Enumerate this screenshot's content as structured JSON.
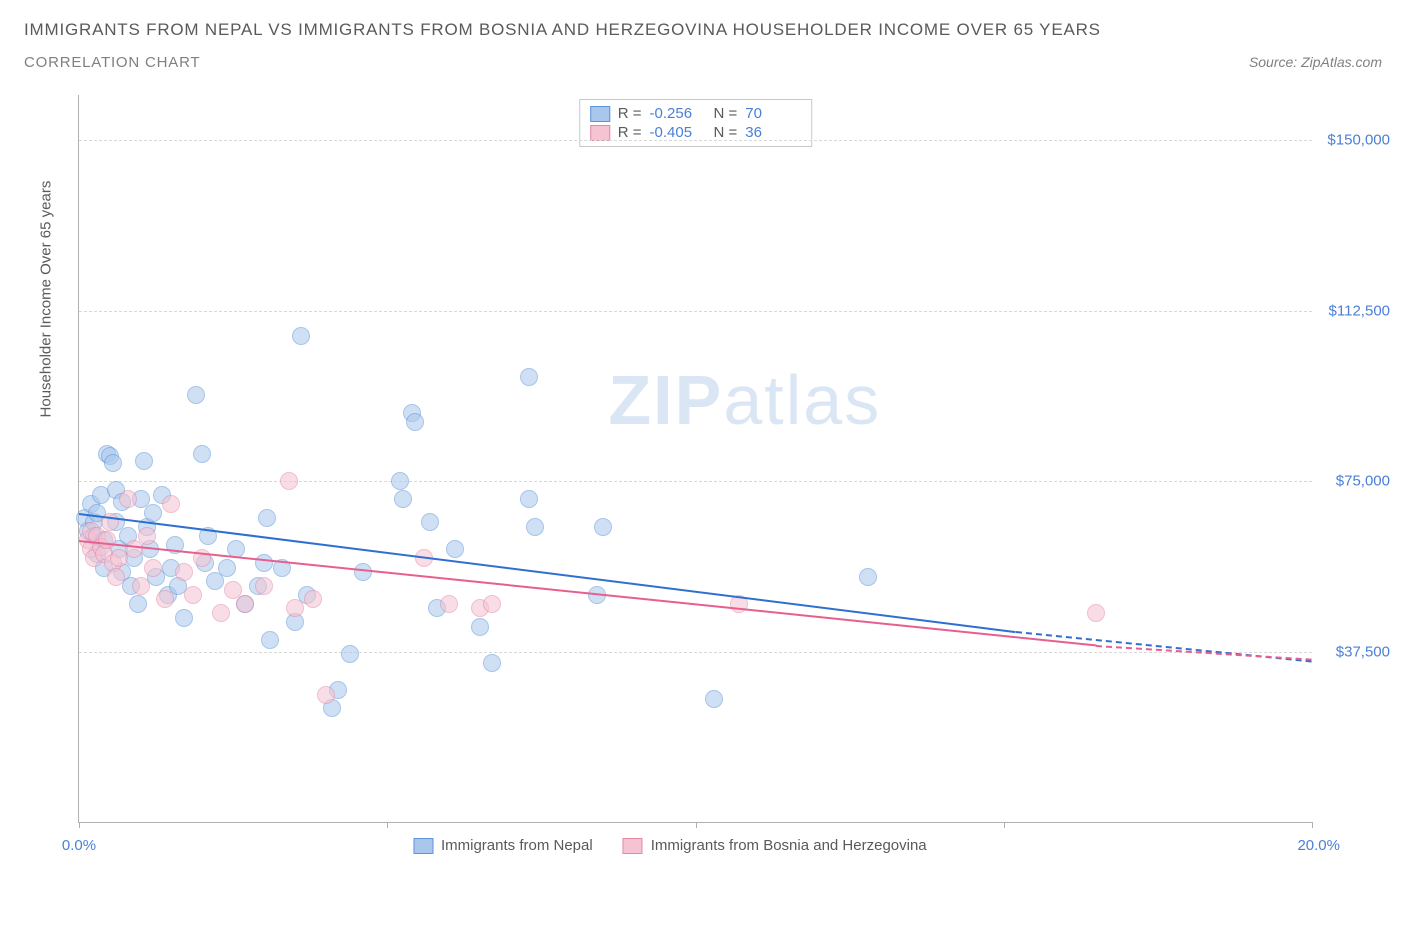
{
  "header": {
    "title": "IMMIGRANTS FROM NEPAL VS IMMIGRANTS FROM BOSNIA AND HERZEGOVINA HOUSEHOLDER INCOME OVER 65 YEARS",
    "subtitle": "CORRELATION CHART",
    "source_prefix": "Source: ",
    "source": "ZipAtlas.com"
  },
  "watermark": {
    "zip": "ZIP",
    "atlas": "atlas"
  },
  "chart": {
    "type": "scatter",
    "background_color": "#ffffff",
    "grid_color": "#d8d8d8",
    "axis_color": "#b0b0b0",
    "xlim": [
      0,
      20
    ],
    "ylim": [
      0,
      160000
    ],
    "x_ticks": [
      0,
      5,
      10,
      15,
      20
    ],
    "x_tick_labels_visible": [
      "0.0%",
      "20.0%"
    ],
    "y_gridlines": [
      37500,
      75000,
      112500,
      150000
    ],
    "y_tick_labels": [
      "$37,500",
      "$75,000",
      "$112,500",
      "$150,000"
    ],
    "y_axis_title": "Householder Income Over 65 years",
    "point_radius": 9,
    "point_opacity": 0.55,
    "series": [
      {
        "key": "nepal",
        "label": "Immigrants from Nepal",
        "color_fill": "#a9c7ec",
        "color_stroke": "#5f94d8",
        "reg_color": "#2f6fd0",
        "R": "-0.256",
        "N": "70",
        "regression": {
          "x1": 0,
          "y1": 68000,
          "x2": 15.2,
          "y2": 42000,
          "dash_to_x": 20,
          "dash_to_y": 35500
        },
        "points": [
          [
            0.1,
            67000
          ],
          [
            0.15,
            64000
          ],
          [
            0.2,
            70000
          ],
          [
            0.25,
            66000
          ],
          [
            0.25,
            63000
          ],
          [
            0.3,
            68000
          ],
          [
            0.3,
            59000
          ],
          [
            0.35,
            72000
          ],
          [
            0.4,
            62000
          ],
          [
            0.4,
            56000
          ],
          [
            0.45,
            81000
          ],
          [
            0.5,
            80500
          ],
          [
            0.55,
            79000
          ],
          [
            0.6,
            66000
          ],
          [
            0.6,
            73000
          ],
          [
            0.65,
            60000
          ],
          [
            0.7,
            55000
          ],
          [
            0.7,
            70500
          ],
          [
            0.8,
            63000
          ],
          [
            0.85,
            52000
          ],
          [
            0.9,
            58000
          ],
          [
            0.95,
            48000
          ],
          [
            1.0,
            71000
          ],
          [
            1.05,
            79500
          ],
          [
            1.1,
            65000
          ],
          [
            1.15,
            60000
          ],
          [
            1.2,
            68000
          ],
          [
            1.25,
            54000
          ],
          [
            1.35,
            72000
          ],
          [
            1.45,
            50000
          ],
          [
            1.5,
            56000
          ],
          [
            1.55,
            61000
          ],
          [
            1.6,
            52000
          ],
          [
            1.7,
            45000
          ],
          [
            1.9,
            94000
          ],
          [
            2.0,
            81000
          ],
          [
            2.05,
            57000
          ],
          [
            2.1,
            63000
          ],
          [
            2.2,
            53000
          ],
          [
            2.4,
            56000
          ],
          [
            2.55,
            60000
          ],
          [
            2.7,
            48000
          ],
          [
            2.9,
            52000
          ],
          [
            3.0,
            57000
          ],
          [
            3.05,
            67000
          ],
          [
            3.1,
            40000
          ],
          [
            3.3,
            56000
          ],
          [
            3.5,
            44000
          ],
          [
            3.6,
            107000
          ],
          [
            3.7,
            50000
          ],
          [
            4.1,
            25000
          ],
          [
            4.2,
            29000
          ],
          [
            4.4,
            37000
          ],
          [
            4.6,
            55000
          ],
          [
            5.2,
            75000
          ],
          [
            5.25,
            71000
          ],
          [
            5.4,
            90000
          ],
          [
            5.45,
            88000
          ],
          [
            5.7,
            66000
          ],
          [
            5.8,
            47000
          ],
          [
            6.1,
            60000
          ],
          [
            6.5,
            43000
          ],
          [
            6.7,
            35000
          ],
          [
            7.3,
            71000
          ],
          [
            7.3,
            98000
          ],
          [
            7.4,
            65000
          ],
          [
            8.4,
            50000
          ],
          [
            8.5,
            65000
          ],
          [
            10.3,
            27000
          ],
          [
            12.8,
            54000
          ]
        ]
      },
      {
        "key": "bosnia",
        "label": "Immigrants from Bosnia and Herzegovina",
        "color_fill": "#f5c3d2",
        "color_stroke": "#e589a7",
        "reg_color": "#e65f8e",
        "R": "-0.405",
        "N": "36",
        "regression": {
          "x1": 0,
          "y1": 62000,
          "x2": 16.5,
          "y2": 39000,
          "dash_to_x": 20,
          "dash_to_y": 36000
        },
        "points": [
          [
            0.15,
            62000
          ],
          [
            0.2,
            60000
          ],
          [
            0.2,
            64000
          ],
          [
            0.25,
            58000
          ],
          [
            0.3,
            63000
          ],
          [
            0.35,
            60500
          ],
          [
            0.4,
            59000
          ],
          [
            0.45,
            62000
          ],
          [
            0.5,
            66000
          ],
          [
            0.55,
            57000
          ],
          [
            0.6,
            54000
          ],
          [
            0.65,
            58000
          ],
          [
            0.8,
            71000
          ],
          [
            0.9,
            60000
          ],
          [
            1.0,
            52000
          ],
          [
            1.1,
            63000
          ],
          [
            1.2,
            56000
          ],
          [
            1.4,
            49000
          ],
          [
            1.5,
            70000
          ],
          [
            1.7,
            55000
          ],
          [
            1.85,
            50000
          ],
          [
            2.0,
            58000
          ],
          [
            2.3,
            46000
          ],
          [
            2.5,
            51000
          ],
          [
            2.7,
            48000
          ],
          [
            3.0,
            52000
          ],
          [
            3.4,
            75000
          ],
          [
            3.5,
            47000
          ],
          [
            3.8,
            49000
          ],
          [
            4.0,
            28000
          ],
          [
            5.6,
            58000
          ],
          [
            6.0,
            48000
          ],
          [
            6.5,
            47000
          ],
          [
            6.7,
            48000
          ],
          [
            10.7,
            48000
          ],
          [
            16.5,
            46000
          ]
        ]
      }
    ],
    "legend_stats": {
      "r_label": "R =",
      "n_label": "N ="
    }
  }
}
